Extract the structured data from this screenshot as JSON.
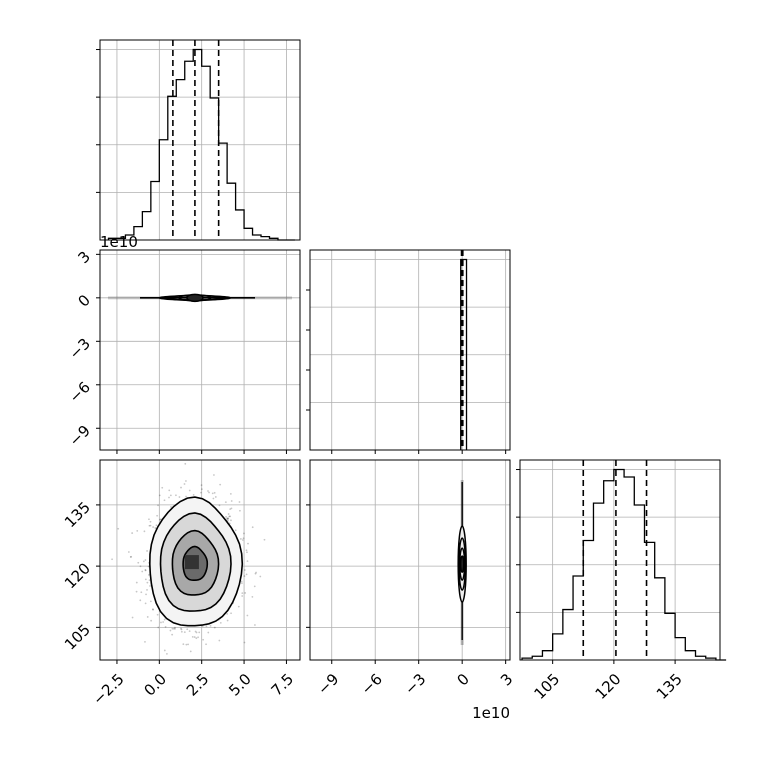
{
  "chart_data": {
    "type": "corner",
    "parameters": [
      {
        "range": [
          -3.5,
          8.3
        ],
        "ticks": [
          -2.5,
          0.0,
          2.5,
          5.0,
          7.5
        ],
        "tick_labels": [
          "−2.5",
          "0.0",
          "2.5",
          "5.0",
          "7.5"
        ],
        "quantiles": [
          0.8,
          2.1,
          3.5
        ],
        "mean": 2.1,
        "sd": 1.3
      },
      {
        "range": [
          -10.5,
          3.3
        ],
        "ticks": [
          -9,
          -6,
          -3,
          0,
          3
        ],
        "tick_labels": [
          "−9",
          "−6",
          "−3",
          "0",
          "3"
        ],
        "offset_label": "1e10",
        "quantiles": [
          -0.05,
          0.0,
          0.05
        ],
        "mean": 0.0,
        "sd": 0.05
      },
      {
        "range": [
          97,
          146
        ],
        "ticks": [
          105,
          120,
          135
        ],
        "tick_labels": [
          "105",
          "120",
          "135"
        ],
        "quantiles": [
          112.5,
          120.5,
          128.0
        ],
        "mean": 120.5,
        "sd": 7.5
      }
    ],
    "histograms": {
      "p0": {
        "bin_edges": [
          -3.0,
          -2.5,
          -2.0,
          -1.5,
          -1.0,
          -0.5,
          0.0,
          0.5,
          1.0,
          1.5,
          2.0,
          2.5,
          3.0,
          3.5,
          4.0,
          4.5,
          5.0,
          5.5,
          6.0,
          6.5,
          7.0,
          7.5,
          8.0
        ],
        "counts": [
          1,
          1,
          3,
          8,
          17,
          35,
          60,
          86,
          96,
          107,
          114,
          104,
          85,
          58,
          34,
          18,
          7,
          3,
          2,
          1,
          0,
          0
        ]
      },
      "p1": {
        "bin_edges": [
          -0.1,
          0.0,
          0.3
        ],
        "counts": [
          100,
          100
        ]
      },
      "p2": {
        "bin_edges": [
          97.5,
          100.0,
          102.5,
          105.0,
          107.5,
          110.0,
          112.5,
          115.0,
          117.5,
          120.0,
          122.5,
          125.0,
          127.5,
          130.0,
          132.5,
          135.0,
          137.5,
          140.0,
          142.5,
          145.0,
          147.5
        ],
        "counts": [
          1,
          2,
          5,
          14,
          27,
          45,
          64,
          84,
          96,
          102,
          98,
          83,
          63,
          44,
          25,
          12,
          5,
          2,
          1,
          0
        ]
      }
    },
    "contour_levels": 4,
    "grid": true
  }
}
